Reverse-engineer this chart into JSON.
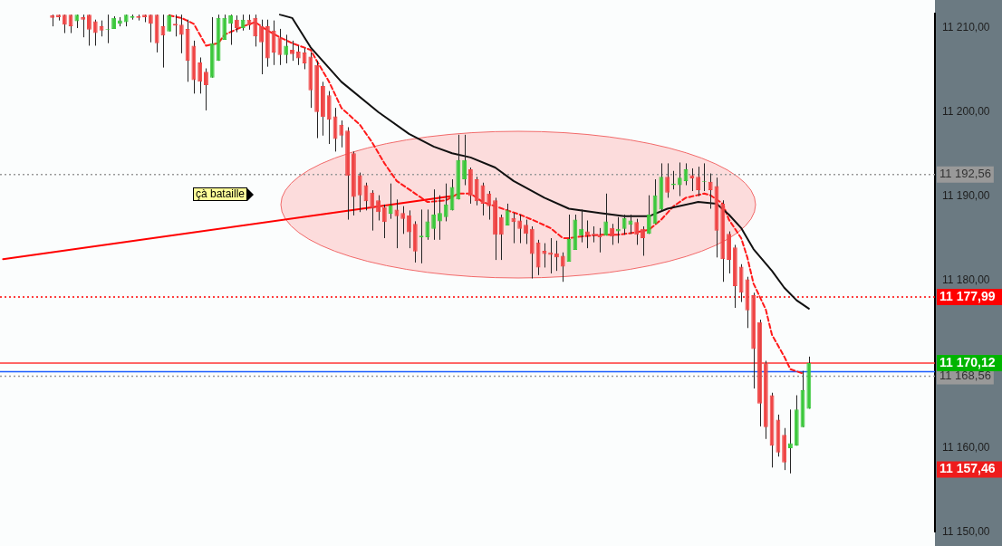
{
  "chart_data": {
    "type": "candlestick",
    "categories": [
      null,
      null,
      null,
      null,
      null,
      null,
      null,
      null,
      null,
      null,
      null,
      null,
      null,
      null,
      null,
      null,
      null,
      null,
      null,
      null,
      null,
      null,
      null,
      null,
      null,
      null,
      null,
      null,
      null,
      null,
      null,
      null,
      null,
      null,
      null,
      null,
      null,
      null,
      null,
      null,
      null,
      null,
      null,
      null,
      null,
      null,
      null,
      null,
      null,
      null,
      null,
      null,
      null,
      null,
      null,
      null,
      null,
      null,
      null,
      null,
      null,
      null,
      null,
      null,
      null,
      null,
      null,
      null,
      null,
      null,
      null,
      null,
      null,
      null,
      null,
      null,
      null,
      null,
      null,
      null,
      null,
      null,
      null,
      null,
      null,
      null,
      null,
      null,
      null,
      null,
      null,
      null,
      null,
      null,
      null,
      null,
      null,
      null,
      null,
      null,
      null,
      null,
      null,
      null,
      null,
      null,
      null,
      null,
      null,
      null,
      null,
      null,
      null,
      null,
      null,
      null,
      null,
      null,
      null,
      null,
      null,
      null,
      null,
      null,
      null,
      null,
      null,
      null,
      null,
      null,
      null,
      null,
      null,
      null,
      null,
      null,
      null,
      null,
      null,
      null,
      null,
      null,
      null,
      null,
      null,
      null,
      null,
      null,
      null,
      null,
      null,
      null
    ],
    "ohlc": [
      null,
      null,
      null,
      null,
      null,
      null,
      null,
      null,
      [
        11211.5,
        11211.6,
        11210.2,
        11211.2
      ],
      [
        11211.6,
        11211.6,
        11210.9,
        11211.3
      ],
      [
        11211.6,
        11211.6,
        11209.4,
        11210.4
      ],
      [
        11211.6,
        11211.6,
        11209.4,
        11210.2
      ],
      [
        11210.8,
        11211.6,
        11210.0,
        11211.6
      ],
      [
        11211.3,
        11211.6,
        11208.9,
        11211.0
      ],
      [
        11211.6,
        11211.6,
        11207.9,
        11209.8
      ],
      [
        11210.8,
        11211.0,
        11207.9,
        11209.4
      ],
      [
        11210.2,
        11210.9,
        11209.0,
        11209.7
      ],
      [
        11209.8,
        11211.6,
        11208.2,
        11209.9
      ],
      [
        11209.9,
        11211.4,
        11209.9,
        11211.2
      ],
      [
        11210.5,
        11211.3,
        11210.2,
        11210.9
      ],
      [
        11210.7,
        11211.6,
        11210.2,
        11211.6
      ],
      [
        11211.2,
        11211.6,
        11211.0,
        11211.4
      ],
      [
        11211.4,
        11211.6,
        11210.9,
        11211.2
      ],
      [
        11211.6,
        11211.6,
        11210.7,
        11211.3
      ],
      [
        11211.6,
        11211.6,
        11208.3,
        11210.5
      ],
      [
        11211.6,
        11211.6,
        11207.1,
        11208.2
      ],
      [
        11210.2,
        11211.6,
        11205.3,
        11209.1
      ],
      [
        11209.6,
        11211.6,
        11209.6,
        11211.5
      ],
      [
        11210.5,
        11211.6,
        11209.0,
        11210.3
      ],
      [
        11210.4,
        11211.6,
        11207.0,
        11209.2
      ],
      [
        11209.9,
        11211.0,
        11203.6,
        11206.1
      ],
      [
        11207.9,
        11208.5,
        11202.2,
        11203.8
      ],
      [
        11205.9,
        11206.5,
        11202.2,
        11203.6
      ],
      [
        11204.8,
        11205.2,
        11200.2,
        11203.2
      ],
      [
        11204.1,
        11211.3,
        11204.1,
        11208.2
      ],
      [
        11206.1,
        11211.6,
        11206.1,
        11211.2
      ],
      [
        11208.6,
        11211.6,
        11208.6,
        11211.2
      ],
      [
        11210.5,
        11211.6,
        11208.0,
        11211.5
      ],
      [
        11211.0,
        11211.5,
        11209.5,
        11210.0
      ],
      [
        11210.0,
        11211.6,
        11209.7,
        11211.0
      ],
      [
        11211.0,
        11211.6,
        11209.8,
        11210.3
      ],
      [
        11211.2,
        11211.6,
        11207.8,
        11209.0
      ],
      [
        11210.2,
        11211.0,
        11204.5,
        11208.3
      ],
      [
        11210.2,
        11211.0,
        11205.4,
        11206.4
      ],
      [
        11209.7,
        11210.9,
        11205.6,
        11207.1
      ],
      [
        11208.9,
        11209.9,
        11205.6,
        11206.8
      ],
      [
        11206.8,
        11209.2,
        11205.8,
        11207.9
      ],
      [
        11207.4,
        11208.5,
        11206.1,
        11206.9
      ],
      [
        11207.2,
        11207.9,
        11205.6,
        11206.4
      ],
      [
        11207.1,
        11207.6,
        11205.1,
        11205.8
      ],
      [
        11206.6,
        11207.1,
        11200.5,
        11202.6
      ],
      [
        11205.6,
        11206.1,
        11196.9,
        11200.0
      ],
      [
        11203.1,
        11203.6,
        11197.2,
        11199.4
      ],
      [
        11202.0,
        11202.5,
        11196.2,
        11199.1
      ],
      [
        11199.5,
        11200.5,
        11195.3,
        11196.8
      ],
      [
        11198.5,
        11199.0,
        11195.8,
        11197.2
      ],
      [
        11197.8,
        11198.2,
        11187.2,
        11192.4
      ],
      [
        11195.1,
        11195.3,
        11187.7,
        11189.9
      ],
      [
        11192.5,
        11192.8,
        11188.1,
        11190.1
      ],
      [
        11191.3,
        11191.6,
        11188.3,
        11189.4
      ],
      [
        11190.4,
        11190.7,
        11185.9,
        11188.5
      ],
      [
        11189.5,
        11190.1,
        11187.1,
        11188.1
      ],
      [
        11188.7,
        11189.0,
        11185.0,
        11186.9
      ],
      [
        11187.9,
        11191.5,
        11187.3,
        11188.9
      ],
      [
        11188.4,
        11189.6,
        11183.8,
        11187.6
      ],
      [
        11188.0,
        11188.8,
        11185.5,
        11187.3
      ],
      [
        11187.7,
        11188.3,
        11183.8,
        11185.7
      ],
      [
        11186.7,
        11187.0,
        11182.1,
        11183.4
      ],
      [
        11185.1,
        11188.4,
        11182.0,
        11185.3
      ],
      [
        11185.1,
        11188.4,
        11184.8,
        11187.0
      ],
      [
        11186.1,
        11190.8,
        11184.8,
        11187.8
      ],
      [
        11187.0,
        11190.1,
        11184.8,
        11188.0
      ],
      [
        11187.5,
        11191.5,
        11187.0,
        11189.0
      ],
      [
        11188.3,
        11192.0,
        11188.3,
        11191.1
      ],
      [
        11189.6,
        11197.3,
        11189.6,
        11194.3
      ],
      [
        11192.0,
        11197.3,
        11191.3,
        11194.3
      ],
      [
        11193.2,
        11193.4,
        11189.1,
        11190.0
      ],
      [
        11192.0,
        11192.3,
        11188.9,
        11189.4
      ],
      [
        11191.3,
        11191.6,
        11187.7,
        11189.1
      ],
      [
        11190.3,
        11190.6,
        11187.2,
        11188.8
      ],
      [
        11189.5,
        11189.8,
        11182.4,
        11185.4
      ],
      [
        11187.5,
        11187.8,
        11182.4,
        11185.4
      ],
      [
        11186.5,
        11189.1,
        11186.5,
        11188.3
      ],
      [
        11187.4,
        11188.0,
        11184.4,
        11186.9
      ],
      [
        11187.1,
        11187.8,
        11184.4,
        11186.1
      ],
      [
        11186.6,
        11187.2,
        11184.3,
        11185.5
      ],
      [
        11186.1,
        11186.4,
        11180.2,
        11183.1
      ],
      [
        11184.5,
        11184.8,
        11180.6,
        11181.5
      ],
      [
        11183.5,
        11184.4,
        11181.5,
        11183.1
      ],
      [
        11183.3,
        11185.0,
        11180.8,
        11183.0
      ],
      [
        11183.2,
        11184.7,
        11181.1,
        11182.7
      ],
      [
        11182.9,
        11183.3,
        11179.8,
        11181.6
      ],
      [
        11182.2,
        11187.8,
        11182.2,
        11184.9
      ],
      [
        11183.6,
        11187.8,
        11183.6,
        11187.2
      ],
      [
        11185.3,
        11188.4,
        11184.5,
        11186.1
      ],
      [
        11185.8,
        11187.1,
        11183.8,
        11185.3
      ],
      [
        11185.5,
        11186.4,
        11184.5,
        11185.3
      ],
      [
        11185.4,
        11186.2,
        11183.3,
        11185.1
      ],
      [
        11185.3,
        11190.3,
        11185.3,
        11187.0
      ],
      [
        11186.2,
        11186.7,
        11184.2,
        11185.2
      ],
      [
        11185.8,
        11187.5,
        11184.4,
        11186.1
      ],
      [
        11186.1,
        11187.8,
        11185.4,
        11187.4
      ],
      [
        11186.6,
        11187.8,
        11185.5,
        11187.1
      ],
      [
        11186.9,
        11187.3,
        11184.2,
        11185.4
      ],
      [
        11186.1,
        11186.4,
        11182.9,
        11185.0
      ],
      [
        11185.5,
        11190.1,
        11185.5,
        11187.8
      ],
      [
        11186.7,
        11192.0,
        11186.7,
        11190.1
      ],
      [
        11188.4,
        11193.9,
        11188.3,
        11192.3
      ],
      [
        11192.3,
        11193.9,
        11189.8,
        11190.4
      ],
      [
        11191.3,
        11193.0,
        11190.8,
        11191.5
      ],
      [
        11191.3,
        11194.0,
        11190.0,
        11192.2
      ],
      [
        11191.8,
        11193.9,
        11191.3,
        11193.2
      ],
      [
        11192.5,
        11193.3,
        11190.6,
        11192.1
      ],
      [
        11192.3,
        11193.5,
        11190.0,
        11190.7
      ],
      [
        11191.7,
        11193.9,
        11190.6,
        11191.8
      ],
      [
        11191.7,
        11192.7,
        11188.5,
        11190.7
      ],
      [
        11191.2,
        11192.2,
        11182.7,
        11185.9
      ],
      [
        11189.1,
        11189.5,
        11179.8,
        11182.5
      ],
      [
        11185.5,
        11185.8,
        11180.8,
        11182.4
      ],
      [
        11183.9,
        11184.2,
        11176.7,
        11179.3
      ],
      [
        11181.6,
        11181.9,
        11177.4,
        11178.5
      ],
      [
        11180.1,
        11180.4,
        11174.3,
        11176.4
      ],
      [
        11178.2,
        11178.5,
        11167.1,
        11171.8
      ],
      [
        11175.0,
        11175.3,
        11162.6,
        11165.3
      ],
      [
        11170.1,
        11170.4,
        11161.1,
        11162.5
      ],
      [
        11166.3,
        11166.6,
        11157.7,
        11160.3
      ],
      [
        11163.4,
        11164.0,
        11159.0,
        11159.5
      ],
      [
        11161.6,
        11162.4,
        11157.4,
        11158.3
      ],
      [
        11160.0,
        11164.6,
        11157.0,
        11160.6
      ],
      [
        11160.3,
        11166.3,
        11160.3,
        11164.6
      ],
      [
        11162.5,
        11169.2,
        11162.5,
        11166.9
      ],
      [
        11164.7,
        11170.9,
        11164.7,
        11170.12
      ],
      null,
      null,
      null,
      null,
      null,
      null,
      null,
      null,
      null,
      null,
      null,
      null,
      null,
      null,
      null,
      null,
      null,
      null,
      null,
      null
    ],
    "colors": [
      null,
      null,
      null,
      null,
      null,
      null,
      null,
      null,
      "#ef4545",
      "#ef4545",
      "#ef4545",
      "#ef4545",
      "#3cc83c",
      "#ef4545",
      "#ef4545",
      "#ef4545",
      "#ef4545",
      "#3cc83c",
      "#3cc83c",
      "#3cc83c",
      "#3cc83c",
      "#3cc83c",
      "#ef4545",
      "#ef4545",
      "#ef4545",
      "#ef4545",
      "#ef4545",
      "#3cc83c",
      "#ef4545",
      "#ef4545",
      "#ef4545",
      "#ef4545",
      "#ef4545",
      "#ef4545",
      "#3cc83c",
      "#3cc83c",
      "#3cc83c",
      "#3cc83c",
      "#ef4545",
      "#3cc83c",
      "#ef4545",
      "#ef4545",
      "#ef4545",
      "#ef4545",
      "#ef4545",
      "#ef4545",
      "#3cc83c",
      "#ef4545",
      "#ef4545",
      "#ef4545",
      "#ef4545",
      "#ef4545",
      "#ef4545",
      "#ef4545",
      "#ef4545",
      "#ef4545",
      "#ef4545",
      "#ef4545",
      "#ef4545",
      "#ef4545",
      "#ef4545",
      "#ef4545",
      "#ef4545",
      "#3cc83c",
      "#ef4545",
      "#ef4545",
      "#ef4545",
      "#ef4545",
      "#3cc83c",
      "#3cc83c",
      "#3cc83c",
      "#3cc83c",
      "#3cc83c",
      "#3cc83c",
      "#3cc83c",
      "#3cc83c",
      "#ef4545",
      "#ef4545",
      "#ef4545",
      "#ef4545",
      "#ef4545",
      "#ef4545",
      "#3cc83c",
      "#ef4545",
      "#ef4545",
      "#ef4545",
      "#ef4545",
      "#ef4545",
      "#ef4545",
      "#ef4545",
      "#ef4545",
      "#ef4545",
      "#3cc83c",
      "#3cc83c",
      "#3cc83c",
      "#ef4545",
      "#ef4545",
      "#ef4545",
      "#3cc83c",
      "#ef4545",
      "#3cc83c",
      "#3cc83c",
      "#3cc83c",
      "#ef4545",
      "#ef4545",
      "#3cc83c",
      "#3cc83c",
      "#3cc83c",
      "#ef4545",
      "#3cc83c",
      "#3cc83c",
      "#3cc83c",
      "#ef4545",
      "#ef4545",
      "#3cc83c",
      "#ef4545",
      "#ef4545",
      "#ef4545",
      "#ef4545",
      "#ef4545",
      "#ef4545",
      "#ef4545",
      "#ef4545",
      "#ef4545",
      "#ef4545",
      "#ef4545",
      "#ef4545",
      "#ef4545",
      "#3cc83c",
      "#3cc83c",
      "#3cc83c",
      "#3cc83c",
      null,
      null,
      null,
      null,
      null,
      null,
      null,
      null,
      null,
      null,
      null,
      null,
      null,
      null,
      null,
      null,
      null,
      null,
      null,
      null
    ],
    "series": [
      {
        "type": "line",
        "color": "#111111",
        "line_style": "solid",
        "values": [
          null,
          null,
          null,
          null,
          null,
          null,
          null,
          null,
          null,
          null,
          null,
          null,
          null,
          null,
          null,
          null,
          null,
          null,
          null,
          null,
          null,
          null,
          null,
          null,
          null,
          null,
          null,
          null,
          null,
          null,
          null,
          null,
          null,
          null,
          null,
          null,
          null,
          null,
          null,
          null,
          null,
          null,
          null,
          null,
          null,
          11211.6,
          null,
          11211.2,
          null,
          null,
          11207.7,
          null,
          null,
          null,
          null,
          11203.6,
          null,
          null,
          null,
          null,
          null,
          11200.0,
          null,
          null,
          null,
          null,
          11197.4,
          null,
          null,
          null,
          11195.9,
          null,
          null,
          11195.1,
          null,
          null,
          11194.6,
          null,
          null,
          null,
          11193.4,
          null,
          null,
          11191.8,
          null,
          null,
          null,
          null,
          11189.8,
          null,
          null,
          null,
          11188.5,
          null,
          null,
          null,
          null,
          11188.0,
          null,
          null,
          null,
          11187.6,
          null,
          null,
          null,
          11187.6,
          null,
          null,
          11188.5,
          null,
          null,
          null,
          null,
          11189.3,
          null,
          null,
          11189.1,
          null,
          11187.8,
          null,
          11186.2,
          null,
          11183.7,
          null,
          null,
          11181.1,
          null,
          11179.1,
          null,
          11177.6,
          null,
          11176.6,
          null,
          null,
          null,
          null,
          null,
          null,
          null,
          null,
          null,
          null,
          null,
          null,
          null,
          null,
          null,
          null,
          null,
          null,
          null,
          null
        ]
      },
      {
        "type": "line",
        "color": "#ff1a1a",
        "line_style": "dashed",
        "values": [
          null,
          null,
          null,
          null,
          null,
          null,
          null,
          null,
          null,
          null,
          null,
          null,
          null,
          null,
          null,
          null,
          null,
          null,
          null,
          null,
          null,
          null,
          null,
          null,
          null,
          null,
          null,
          11211.5,
          null,
          11211.2,
          null,
          11210.5,
          null,
          11207.9,
          null,
          11208.2,
          11209.2,
          null,
          null,
          11210.2,
          null,
          11210.7,
          null,
          11209.7,
          null,
          11208.9,
          null,
          11208.2,
          null,
          null,
          11207.4,
          11206.1,
          null,
          11203.6,
          null,
          11200.5,
          null,
          null,
          11198.5,
          null,
          11196.4,
          null,
          11193.9,
          null,
          11191.8,
          null,
          null,
          11190.3,
          null,
          11189.3,
          null,
          null,
          11189.5,
          null,
          11190.3,
          null,
          11190.3,
          null,
          11189.3,
          null,
          11188.8,
          null,
          11188.3,
          null,
          11187.8,
          null,
          11187.2,
          null,
          null,
          11186.2,
          null,
          11185.0,
          11185.0,
          null,
          11185.2,
          null,
          null,
          11185.4,
          null,
          null,
          11185.4,
          null,
          null,
          11185.7,
          null,
          11186.0,
          null,
          11187.2,
          null,
          11188.8,
          null,
          11189.8,
          null,
          null,
          11190.3,
          11190.1,
          null,
          11189.1,
          11187.2,
          null,
          11185.0,
          11182.7,
          11179.6,
          null,
          11176.5,
          11173.5,
          null,
          11170.9,
          11169.4,
          null,
          11168.9,
          null,
          null,
          null,
          null,
          null,
          null,
          null,
          null,
          null,
          null,
          null,
          null,
          null,
          null,
          null,
          null,
          null,
          null,
          null,
          null,
          null
        ]
      },
      {
        "type": "line",
        "color": "#ff0000",
        "line_style": "solid",
        "values": [
          11182.5,
          null,
          null,
          null,
          null,
          null,
          null,
          null,
          null,
          null,
          null,
          null,
          null,
          null,
          null,
          null,
          null,
          null,
          null,
          null,
          null,
          null,
          null,
          null,
          null,
          null,
          null,
          null,
          null,
          null,
          null,
          null,
          null,
          null,
          null,
          null,
          null,
          null,
          null,
          null,
          null,
          null,
          null,
          null,
          null,
          null,
          null,
          null,
          null,
          null,
          null,
          null,
          null,
          null,
          null,
          null,
          null,
          null,
          null,
          null,
          null,
          null,
          null,
          null,
          null,
          null,
          null,
          null,
          null,
          null,
          null,
          null,
          null,
          11190.0,
          null,
          null,
          null,
          null,
          null,
          null,
          null,
          null,
          null,
          null,
          null,
          null,
          null,
          null,
          null,
          null,
          null,
          null,
          null,
          null,
          null,
          null,
          null,
          null,
          null,
          null,
          null,
          null,
          null,
          null,
          null,
          null,
          null,
          null,
          null,
          null,
          null,
          null,
          null,
          null,
          null,
          null,
          null,
          null,
          null,
          null,
          null,
          null,
          null,
          null,
          null,
          null,
          null,
          null,
          null,
          null,
          null,
          null,
          null,
          null,
          null,
          null,
          null,
          null,
          null,
          null,
          null,
          null,
          null,
          null,
          null,
          null,
          null,
          null,
          null,
          null,
          null,
          null
        ]
      }
    ],
    "ylim": [
      11150,
      11211.7
    ],
    "yticks": [
      {
        "value": 11150,
        "label": "11 150,00"
      },
      {
        "value": 11160,
        "label": "11 160,00"
      },
      {
        "value": 11180,
        "label": "11 180,00"
      },
      {
        "value": 11190,
        "label": "11 190,00"
      },
      {
        "value": 11200,
        "label": "11 200,00"
      },
      {
        "value": 11210,
        "label": "11 210,00"
      }
    ],
    "ref_lines": [
      {
        "axis": "y",
        "value": 11192.56,
        "label": "11 192,56",
        "color": "#999999",
        "line_style": "dotted"
      },
      {
        "axis": "y",
        "value": 11177.99,
        "label": "11 177,99",
        "color": "#ff0000",
        "line_style": "dotted"
      },
      {
        "axis": "y",
        "value": 11170.12,
        "color": "#ff3333",
        "line_style": "solid"
      },
      {
        "axis": "y",
        "value": 11169.1,
        "color": "#1a5cff",
        "line_style": "solid"
      },
      {
        "axis": "y",
        "value": 11168.56,
        "label": "11 168,56",
        "color": "#999999",
        "line_style": "dotted"
      }
    ],
    "annotations": [
      "çà bataille",
      "11 170,12",
      "11 157,46"
    ],
    "grid": false,
    "legend": false,
    "marker": "none",
    "tick_labels": "y"
  }
}
